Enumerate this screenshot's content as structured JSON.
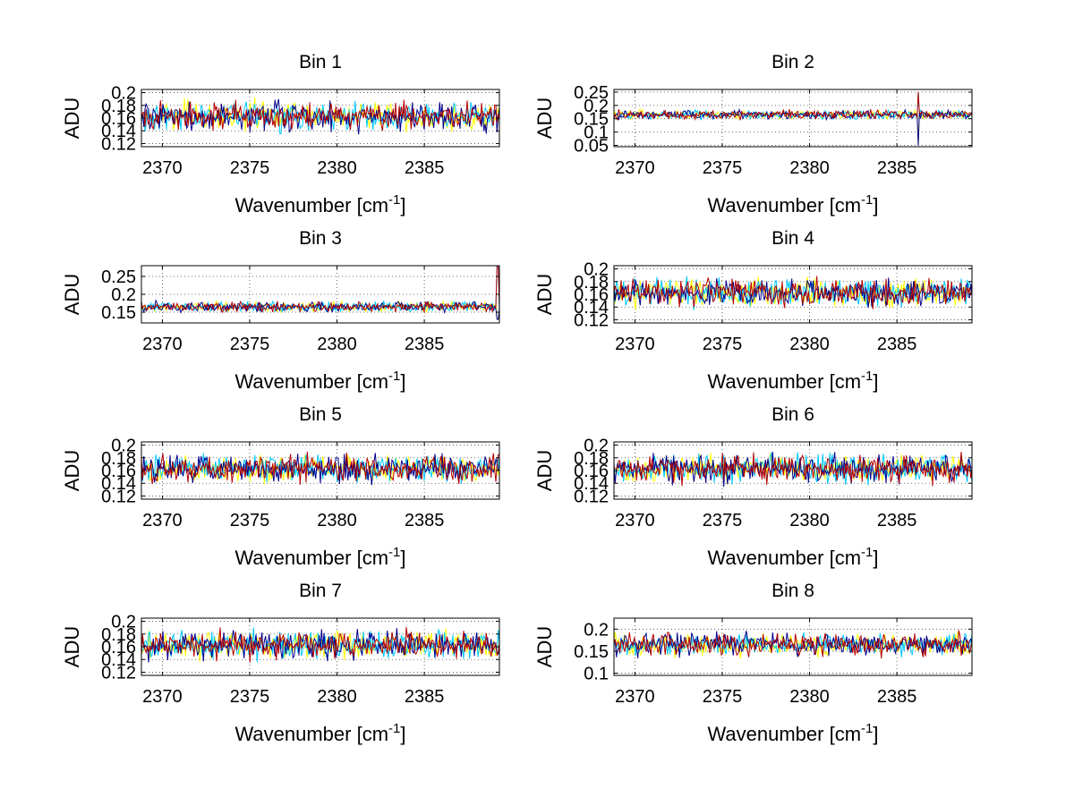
{
  "figure": {
    "background": "#ffffff"
  },
  "palette": [
    "#ffff00",
    "#00c8ff",
    "#00008b",
    "#b40000"
  ],
  "chart_data": [
    {
      "type": "line",
      "title": "Bin 1",
      "xlabel": "Wavenumber [cm",
      "xlabel_sup": "-1",
      "xlabel_end": "]",
      "ylabel": "ADU",
      "xlim": [
        2368.8,
        2389.3
      ],
      "xticks": [
        2370,
        2375,
        2380,
        2385
      ],
      "xtick_labels": [
        "2370",
        "2375",
        "2380",
        "2385"
      ],
      "ylim": [
        0.115,
        0.205
      ],
      "yticks": [
        0.12,
        0.14,
        0.16,
        0.18,
        0.2
      ],
      "ytick_labels": [
        "0.12",
        "0.14",
        "0.16",
        "0.18",
        "0.2"
      ],
      "series_count": 4,
      "baseline": 0.163,
      "noise": 0.016,
      "grid": true
    },
    {
      "type": "line",
      "title": "Bin 2",
      "xlabel": "Wavenumber [cm",
      "xlabel_sup": "-1",
      "xlabel_end": "]",
      "ylabel": "ADU",
      "xlim": [
        2368.8,
        2389.3
      ],
      "xticks": [
        2370,
        2375,
        2380,
        2385
      ],
      "xtick_labels": [
        "2370",
        "2375",
        "2380",
        "2385"
      ],
      "ylim": [
        0.045,
        0.26
      ],
      "yticks": [
        0.05,
        0.1,
        0.15,
        0.2,
        0.25
      ],
      "ytick_labels": [
        "0.05",
        "0.1",
        "0.15",
        "0.2",
        "0.25"
      ],
      "series_count": 4,
      "baseline": 0.165,
      "noise": 0.012,
      "grid": true,
      "spike": {
        "x": 2386.2,
        "values": [
          0.05,
          0.25
        ]
      }
    },
    {
      "type": "line",
      "title": "Bin 3",
      "xlabel": "Wavenumber [cm",
      "xlabel_sup": "-1",
      "xlabel_end": "]",
      "ylabel": "ADU",
      "xlim": [
        2368.8,
        2389.3
      ],
      "xticks": [
        2370,
        2375,
        2380,
        2385
      ],
      "xtick_labels": [
        "2370",
        "2375",
        "2380",
        "2385"
      ],
      "ylim": [
        0.12,
        0.28
      ],
      "yticks": [
        0.15,
        0.2,
        0.25
      ],
      "ytick_labels": [
        "0.15",
        "0.2",
        "0.25"
      ],
      "series_count": 4,
      "baseline": 0.165,
      "noise": 0.01,
      "grid": true,
      "spike": {
        "x": 2389.2,
        "values": [
          0.13,
          0.28
        ]
      }
    },
    {
      "type": "line",
      "title": "Bin 4",
      "xlabel": "Wavenumber [cm",
      "xlabel_sup": "-1",
      "xlabel_end": "]",
      "ylabel": "ADU",
      "xlim": [
        2368.8,
        2389.3
      ],
      "xticks": [
        2370,
        2375,
        2380,
        2385
      ],
      "xtick_labels": [
        "2370",
        "2375",
        "2380",
        "2385"
      ],
      "ylim": [
        0.115,
        0.205
      ],
      "yticks": [
        0.12,
        0.14,
        0.16,
        0.18,
        0.2
      ],
      "ytick_labels": [
        "0.12",
        "0.14",
        "0.16",
        "0.18",
        "0.2"
      ],
      "series_count": 4,
      "baseline": 0.163,
      "noise": 0.016,
      "grid": true
    },
    {
      "type": "line",
      "title": "Bin 5",
      "xlabel": "Wavenumber [cm",
      "xlabel_sup": "-1",
      "xlabel_end": "]",
      "ylabel": "ADU",
      "xlim": [
        2368.8,
        2389.3
      ],
      "xticks": [
        2370,
        2375,
        2380,
        2385
      ],
      "xtick_labels": [
        "2370",
        "2375",
        "2380",
        "2385"
      ],
      "ylim": [
        0.115,
        0.205
      ],
      "yticks": [
        0.12,
        0.14,
        0.16,
        0.18,
        0.2
      ],
      "ytick_labels": [
        "0.12",
        "0.14",
        "0.16",
        "0.18",
        "0.2"
      ],
      "series_count": 4,
      "baseline": 0.163,
      "noise": 0.016,
      "grid": true
    },
    {
      "type": "line",
      "title": "Bin 6",
      "xlabel": "Wavenumber [cm",
      "xlabel_sup": "-1",
      "xlabel_end": "]",
      "ylabel": "ADU",
      "xlim": [
        2368.8,
        2389.3
      ],
      "xticks": [
        2370,
        2375,
        2380,
        2385
      ],
      "xtick_labels": [
        "2370",
        "2375",
        "2380",
        "2385"
      ],
      "ylim": [
        0.115,
        0.205
      ],
      "yticks": [
        0.12,
        0.14,
        0.16,
        0.18,
        0.2
      ],
      "ytick_labels": [
        "0.12",
        "0.14",
        "0.16",
        "0.18",
        "0.2"
      ],
      "series_count": 4,
      "baseline": 0.163,
      "noise": 0.016,
      "grid": true
    },
    {
      "type": "line",
      "title": "Bin 7",
      "xlabel": "Wavenumber [cm",
      "xlabel_sup": "-1",
      "xlabel_end": "]",
      "ylabel": "ADU",
      "xlim": [
        2368.8,
        2389.3
      ],
      "xticks": [
        2370,
        2375,
        2380,
        2385
      ],
      "xtick_labels": [
        "2370",
        "2375",
        "2380",
        "2385"
      ],
      "ylim": [
        0.115,
        0.205
      ],
      "yticks": [
        0.12,
        0.14,
        0.16,
        0.18,
        0.2
      ],
      "ytick_labels": [
        "0.12",
        "0.14",
        "0.16",
        "0.18",
        "0.2"
      ],
      "series_count": 4,
      "baseline": 0.163,
      "noise": 0.016,
      "grid": true
    },
    {
      "type": "line",
      "title": "Bin 8",
      "xlabel": "Wavenumber [cm",
      "xlabel_sup": "-1",
      "xlabel_end": "]",
      "ylabel": "ADU",
      "xlim": [
        2368.8,
        2389.3
      ],
      "xticks": [
        2370,
        2375,
        2380,
        2385
      ],
      "xtick_labels": [
        "2370",
        "2375",
        "2380",
        "2385"
      ],
      "ylim": [
        0.095,
        0.225
      ],
      "yticks": [
        0.1,
        0.15,
        0.2
      ],
      "ytick_labels": [
        "0.1",
        "0.15",
        "0.2"
      ],
      "series_count": 4,
      "baseline": 0.165,
      "noise": 0.018,
      "grid": true
    }
  ]
}
